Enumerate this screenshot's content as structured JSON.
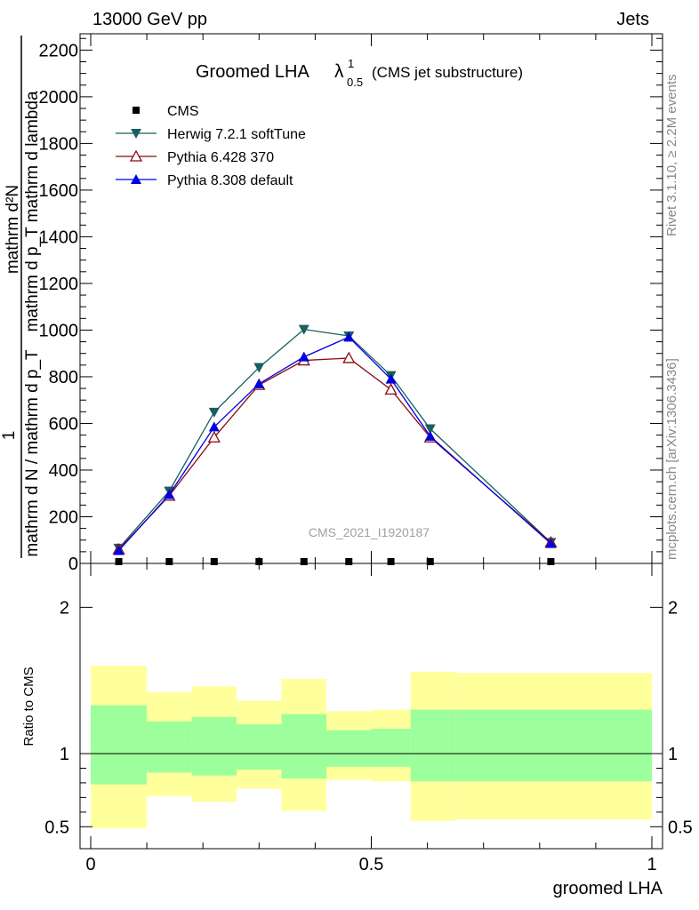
{
  "header": {
    "left": "13000 GeV pp",
    "right": "Jets"
  },
  "side_labels": {
    "rivet": "Rivet 3.1.10, ≥ 2.2M events",
    "mcplots": "mcplots.cern.ch [arXiv:1306.3436]"
  },
  "chart_data": [
    {
      "type": "line",
      "title": "Groomed LHA",
      "title_symbol": "λ",
      "title_sup": "1",
      "title_sub": "0.5",
      "title_suffix": "(CMS jet substructure)",
      "watermark": "CMS_2021_I1920187",
      "ylabel_numerator": "mathrm d²N",
      "ylabel_denominator": "mathrm d p_T mathrm d lambda",
      "ylabel_prefix_num": "1",
      "ylabel_prefix_den": "mathrm d N / mathrm d p_T",
      "xlim": [
        0,
        1
      ],
      "ylim": [
        0,
        2270
      ],
      "yticks": [
        0,
        200,
        400,
        600,
        800,
        1000,
        1200,
        1400,
        1600,
        1800,
        2000,
        2200
      ],
      "legend_position": "top-left",
      "series": [
        {
          "name": "CMS",
          "marker": "square",
          "color": "#000000",
          "x": [
            0.05,
            0.14,
            0.22,
            0.3,
            0.38,
            0.46,
            0.535,
            0.605,
            0.82
          ],
          "values": [
            0,
            0,
            0,
            0,
            0,
            0,
            0,
            0,
            0
          ]
        },
        {
          "name": "Herwig 7.2.1 softTune",
          "marker": "triangle-down",
          "color": "#1b5e5e",
          "x": [
            0.05,
            0.14,
            0.22,
            0.3,
            0.38,
            0.46,
            0.535,
            0.605,
            0.82
          ],
          "values": [
            65,
            310,
            648,
            840,
            1003,
            975,
            805,
            577,
            90
          ]
        },
        {
          "name": "Pythia 6.428 370",
          "marker": "triangle-up-open",
          "color": "#8b0a14",
          "x": [
            0.05,
            0.14,
            0.22,
            0.3,
            0.38,
            0.46,
            0.535,
            0.605,
            0.82
          ],
          "values": [
            60,
            290,
            540,
            765,
            870,
            880,
            745,
            540,
            90
          ]
        },
        {
          "name": "Pythia 8.308 default",
          "marker": "triangle-up",
          "color": "#0000e0",
          "x": [
            0.05,
            0.14,
            0.22,
            0.3,
            0.38,
            0.46,
            0.535,
            0.605,
            0.82
          ],
          "values": [
            55,
            295,
            585,
            770,
            885,
            970,
            790,
            545,
            85
          ]
        }
      ]
    },
    {
      "type": "area",
      "ylabel": "Ratio to CMS",
      "xlabel": "groomed LHA",
      "xlim": [
        0,
        1
      ],
      "ylim": [
        0.35,
        2.3
      ],
      "yticks": [
        0.5,
        1,
        2
      ],
      "xticks": [
        0,
        0.5,
        1
      ],
      "bands": {
        "bins": [
          {
            "x0": 0.0,
            "x1": 0.1,
            "inner": [
              0.79,
              1.33
            ],
            "outer": [
              0.49,
              1.6
            ]
          },
          {
            "x0": 0.1,
            "x1": 0.18,
            "inner": [
              0.87,
              1.22
            ],
            "outer": [
              0.71,
              1.42
            ]
          },
          {
            "x0": 0.18,
            "x1": 0.26,
            "inner": [
              0.85,
              1.25
            ],
            "outer": [
              0.67,
              1.46
            ]
          },
          {
            "x0": 0.26,
            "x1": 0.34,
            "inner": [
              0.89,
              1.2
            ],
            "outer": [
              0.76,
              1.36
            ]
          },
          {
            "x0": 0.34,
            "x1": 0.42,
            "inner": [
              0.83,
              1.27
            ],
            "outer": [
              0.61,
              1.51
            ]
          },
          {
            "x0": 0.42,
            "x1": 0.5,
            "inner": [
              0.91,
              1.16
            ],
            "outer": [
              0.82,
              1.29
            ]
          },
          {
            "x0": 0.5,
            "x1": 0.57,
            "inner": [
              0.91,
              1.17
            ],
            "outer": [
              0.81,
              1.3
            ]
          },
          {
            "x0": 0.57,
            "x1": 0.65,
            "inner": [
              0.81,
              1.3
            ],
            "outer": [
              0.54,
              1.56
            ]
          },
          {
            "x0": 0.65,
            "x1": 1.0,
            "inner": [
              0.81,
              1.3
            ],
            "outer": [
              0.55,
              1.55
            ]
          }
        ],
        "inner_color": "#9cff9c",
        "outer_color": "#ffff9c"
      }
    }
  ]
}
